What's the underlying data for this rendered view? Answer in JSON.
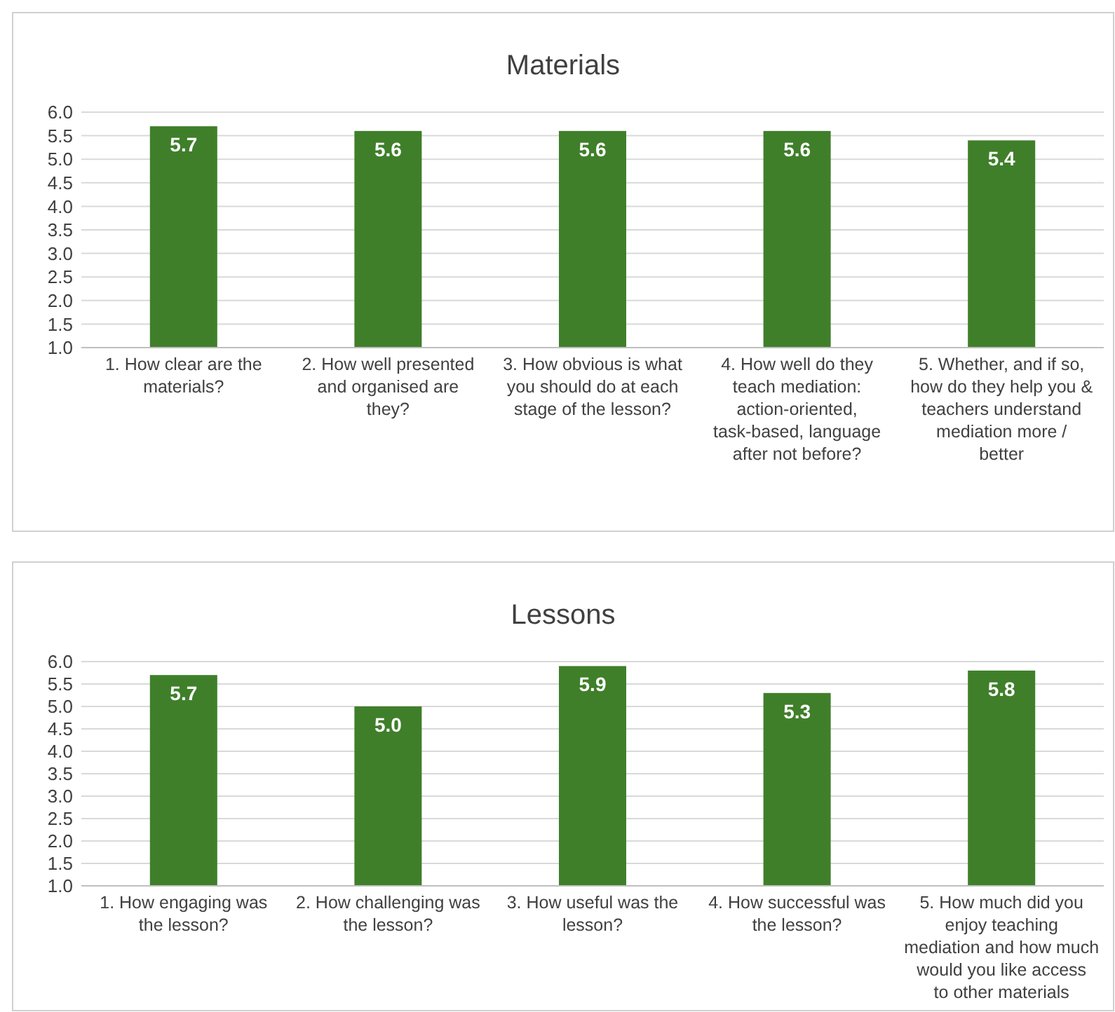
{
  "chart_data": [
    {
      "type": "bar",
      "title": "Materials",
      "categories": [
        "1. How clear are the materials?",
        "2. How well presented and organised are they?",
        "3. How obvious is what you should do at each stage of the lesson?",
        "4. How well do they teach mediation: action-oriented, task-based, language after not before?",
        "5. Whether, and if so, how do they help you & teachers understand mediation more / better"
      ],
      "values": [
        5.7,
        5.6,
        5.6,
        5.6,
        5.4
      ],
      "value_labels": [
        "5.7",
        "5.6",
        "5.6",
        "5.6",
        "5.4"
      ],
      "color": "#3f7f2a",
      "ylim": [
        1,
        6
      ],
      "yticks": [
        {
          "value": 1,
          "label": "1.0"
        },
        {
          "value": 1.5,
          "label": "1.5"
        },
        {
          "value": 2,
          "label": "2.0"
        },
        {
          "value": 2.5,
          "label": "2.5"
        },
        {
          "value": 3,
          "label": "3.0"
        },
        {
          "value": 3.5,
          "label": "3.5"
        },
        {
          "value": 4,
          "label": "4.0"
        },
        {
          "value": 4.5,
          "label": "4.5"
        },
        {
          "value": 5,
          "label": "5.0"
        },
        {
          "value": 5.5,
          "label": "5.5"
        },
        {
          "value": 6,
          "label": "6.0"
        }
      ],
      "grid": "y"
    },
    {
      "type": "bar",
      "title": "Lessons",
      "categories": [
        "1. How engaging was the lesson?",
        "2. How challenging was the lesson?",
        "3. How useful was the lesson?",
        "4. How successful was the lesson?",
        "5. How much did you enjoy teaching mediation and how much would you like access to other materials"
      ],
      "values": [
        5.7,
        5.0,
        5.9,
        5.3,
        5.8
      ],
      "value_labels": [
        "5.7",
        "5.0",
        "5.9",
        "5.3",
        "5.8"
      ],
      "color": "#3f7f2a",
      "ylim": [
        1,
        6
      ],
      "yticks": [
        {
          "value": 1,
          "label": "1.0"
        },
        {
          "value": 1.5,
          "label": "1.5"
        },
        {
          "value": 2,
          "label": "2.0"
        },
        {
          "value": 2.5,
          "label": "2.5"
        },
        {
          "value": 3,
          "label": "3.0"
        },
        {
          "value": 3.5,
          "label": "3.5"
        },
        {
          "value": 4,
          "label": "4.0"
        },
        {
          "value": 4.5,
          "label": "4.5"
        },
        {
          "value": 5,
          "label": "5.0"
        },
        {
          "value": 5.5,
          "label": "5.5"
        },
        {
          "value": 6,
          "label": "6.0"
        }
      ],
      "grid": "y"
    }
  ]
}
